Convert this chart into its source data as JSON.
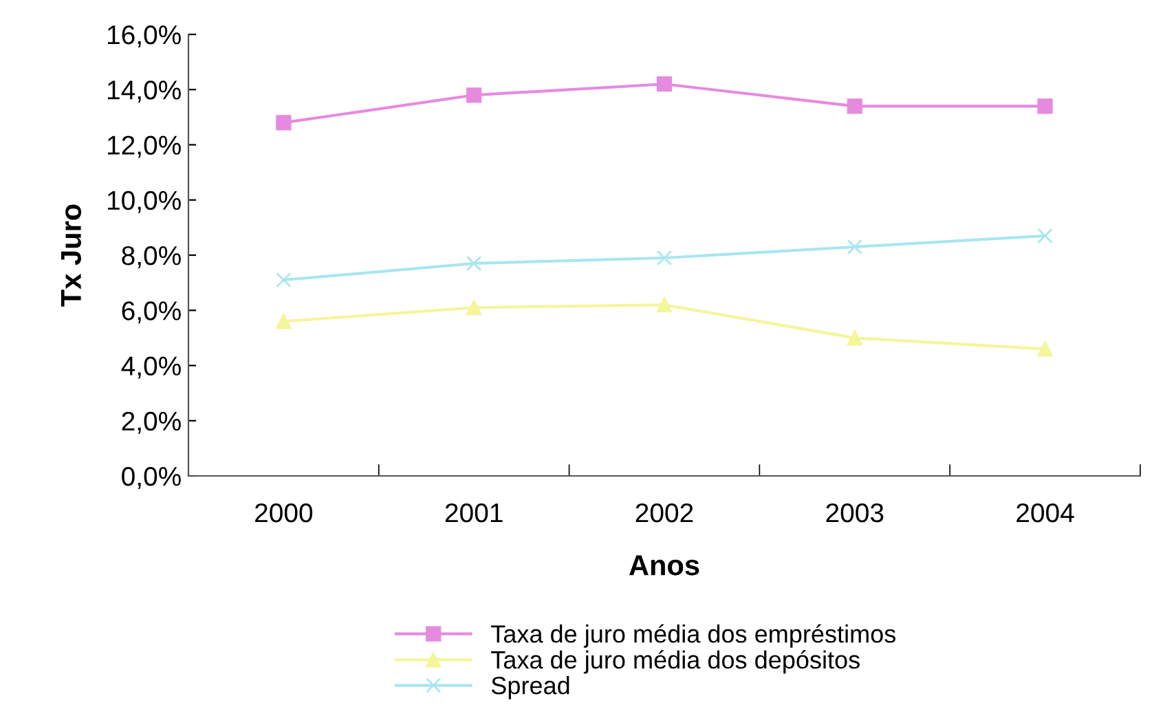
{
  "chart_data": {
    "type": "line",
    "xlabel": "Anos",
    "ylabel": "Tx Juro",
    "categories": [
      "2000",
      "2001",
      "2002",
      "2003",
      "2004"
    ],
    "series": [
      {
        "name": "Taxa de juro média dos empréstimos",
        "color": "#e68ae0",
        "marker": "square",
        "values": [
          12.8,
          13.8,
          14.2,
          13.4,
          13.4
        ]
      },
      {
        "name": "Taxa de juro média dos depósitos",
        "color": "#f5f59a",
        "marker": "triangle",
        "values": [
          5.6,
          6.1,
          6.2,
          5.0,
          4.6
        ]
      },
      {
        "name": "Spread",
        "color": "#a8e6f0",
        "marker": "cross",
        "values": [
          7.1,
          7.7,
          7.9,
          8.3,
          8.7
        ]
      }
    ],
    "ylim": [
      0,
      16
    ],
    "yticks": [
      {
        "value": 0,
        "label": "0,0%"
      },
      {
        "value": 2,
        "label": "2,0%"
      },
      {
        "value": 4,
        "label": "4,0%"
      },
      {
        "value": 6,
        "label": "6,0%"
      },
      {
        "value": 8,
        "label": "8,0%"
      },
      {
        "value": 10,
        "label": "10,0%"
      },
      {
        "value": 12,
        "label": "12,0%"
      },
      {
        "value": 14,
        "label": "14,0%"
      },
      {
        "value": 16,
        "label": "16,0%"
      }
    ],
    "grid": false,
    "legend": "bottom"
  }
}
